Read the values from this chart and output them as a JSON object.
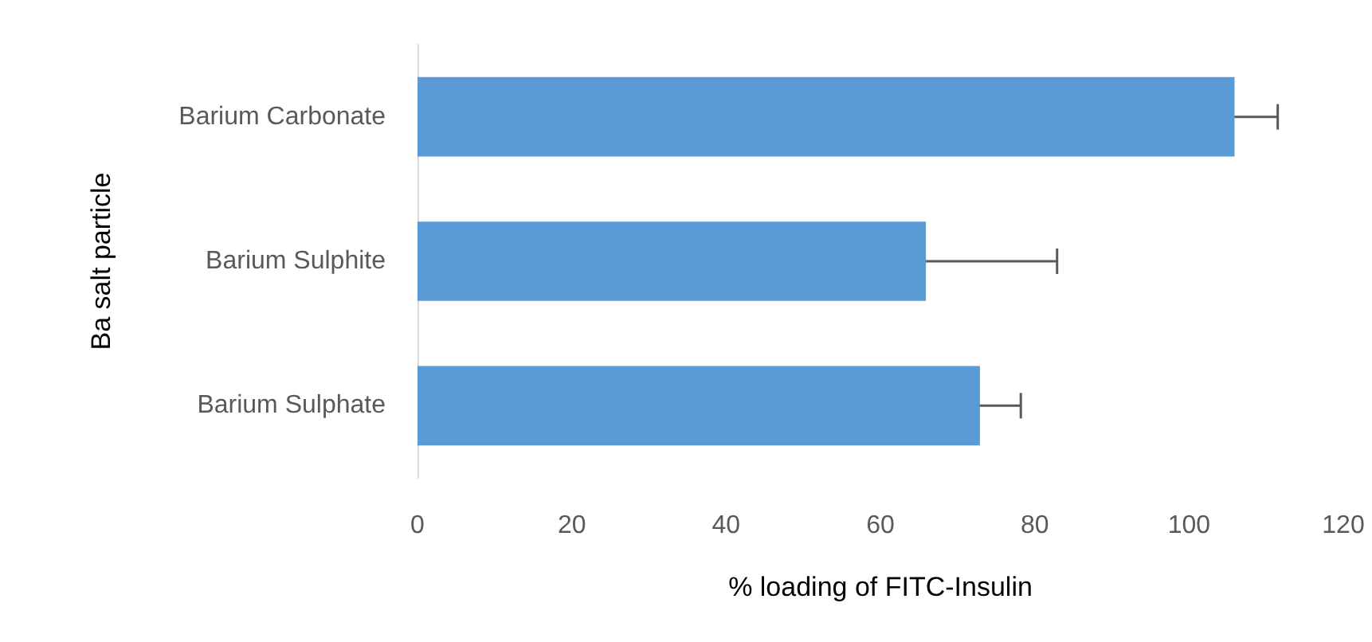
{
  "chart_data": {
    "type": "bar",
    "orientation": "horizontal",
    "xlabel": "% loading of FITC-Insulin",
    "ylabel": "Ba salt particle",
    "categories": [
      "Barium Carbonate",
      "Barium Sulphite",
      "Barium Sulphate"
    ],
    "values": [
      105.9,
      65.9,
      72.9
    ],
    "errors": [
      5.6,
      17,
      5.3
    ],
    "color": "#5b9bd5",
    "xlim": [
      0,
      120
    ],
    "xticks": [
      0,
      20,
      40,
      60,
      80,
      100,
      120
    ],
    "grid": false
  }
}
